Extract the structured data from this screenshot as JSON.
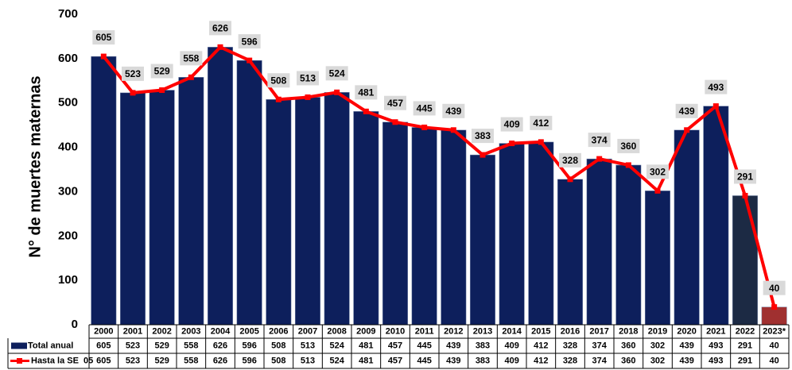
{
  "chart_data": {
    "type": "bar_line",
    "y_label": "N° de muertes  maternas",
    "categories": [
      "2000",
      "2001",
      "2002",
      "2003",
      "2004",
      "2005",
      "2006",
      "2007",
      "2008",
      "2009",
      "2010",
      "2011",
      "2012",
      "2013",
      "2014",
      "2015",
      "2016",
      "2017",
      "2018",
      "2019",
      "2020",
      "2021",
      "2022",
      "2023*"
    ],
    "series": [
      {
        "name": "Total anual",
        "color": "#0d1f5c",
        "bar_colors": [
          "#0d1f5c",
          "#0d1f5c",
          "#0d1f5c",
          "#0d1f5c",
          "#0d1f5c",
          "#0d1f5c",
          "#0d1f5c",
          "#0d1f5c",
          "#0d1f5c",
          "#0d1f5c",
          "#0d1f5c",
          "#0d1f5c",
          "#0d1f5c",
          "#0d1f5c",
          "#0d1f5c",
          "#0d1f5c",
          "#0d1f5c",
          "#0d1f5c",
          "#0d1f5c",
          "#0d1f5c",
          "#0d1f5c",
          "#0d1f5c",
          "#1c2a44",
          "#a03030"
        ],
        "values": [
          605,
          523,
          529,
          558,
          626,
          596,
          508,
          513,
          524,
          481,
          457,
          445,
          439,
          383,
          409,
          412,
          328,
          374,
          360,
          302,
          439,
          493,
          291,
          40
        ]
      },
      {
        "name": "Hasta la SE  05",
        "color": "#ff0000",
        "values": [
          605,
          523,
          529,
          558,
          626,
          596,
          508,
          513,
          524,
          481,
          457,
          445,
          439,
          383,
          409,
          412,
          328,
          374,
          360,
          302,
          439,
          493,
          291,
          40
        ]
      }
    ],
    "ylim": [
      0,
      700
    ],
    "yticks": [
      0,
      100,
      200,
      300,
      400,
      500,
      600,
      700
    ],
    "grid": false
  }
}
